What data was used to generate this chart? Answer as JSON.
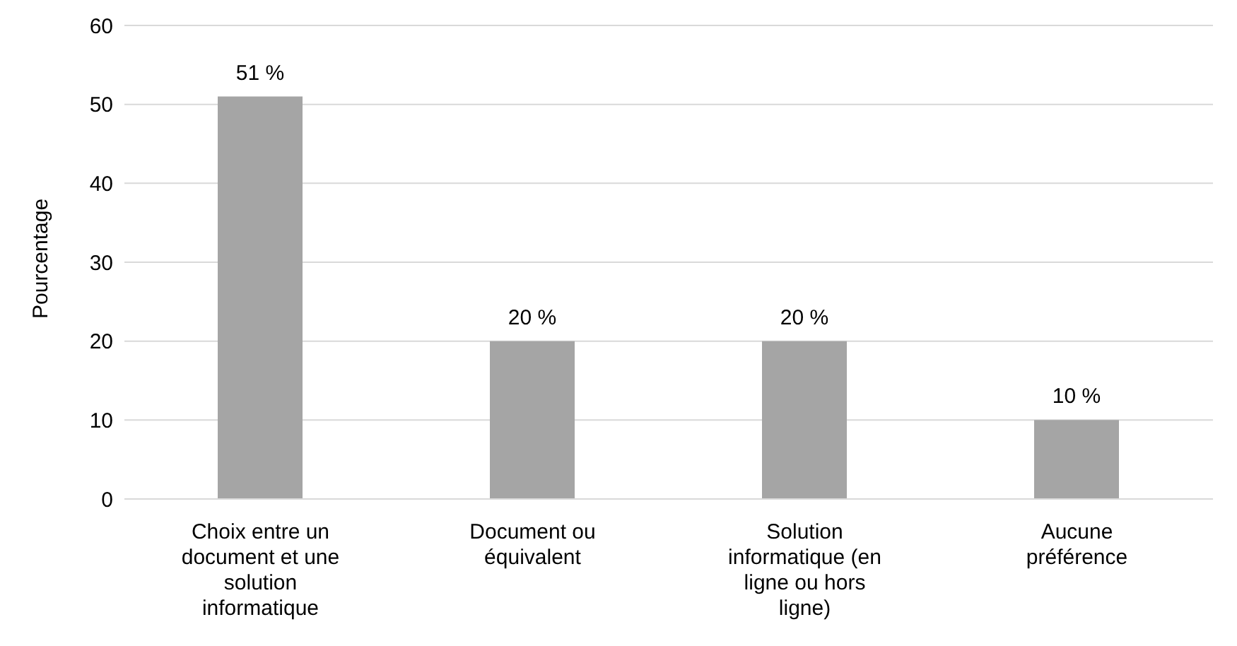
{
  "chart_data": {
    "type": "bar",
    "ylabel": "Pourcentage",
    "categories": [
      "Choix entre un document et une solution informatique",
      "Document ou équivalent",
      "Solution informatique (en ligne ou hors ligne)",
      "Aucune préférence"
    ],
    "values": [
      51,
      20,
      20,
      10
    ],
    "color": "#a5a5a5",
    "value_labels": [
      "51 %",
      "20 %",
      "20 %",
      "10 %"
    ],
    "ylim": [
      0,
      60
    ],
    "yticks": [
      0,
      10,
      20,
      30,
      40,
      50,
      60
    ],
    "grid": "y"
  }
}
